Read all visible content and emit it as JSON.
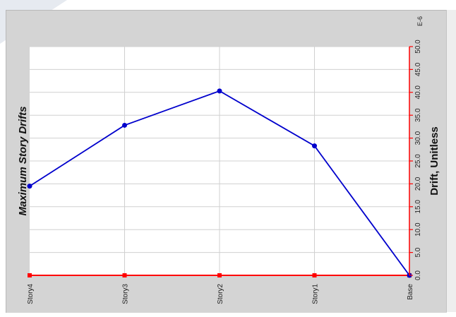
{
  "chart_data": {
    "type": "line",
    "title": "Maximum Story Drifts",
    "xlabel": "",
    "ylabel": "Drift, Unitless",
    "y_scale_label": "E-6",
    "orientation": "rotated-90-clockwise",
    "grid": true,
    "categories": [
      "Story4",
      "Story3",
      "Story2",
      "Story1",
      "Base"
    ],
    "series": [
      {
        "values": [
          19.5,
          32.8,
          40.3,
          28.3,
          0.0
        ],
        "color": "#0000cc",
        "marker": "circle"
      }
    ],
    "baseline": {
      "values": [
        0,
        0,
        0,
        0,
        0
      ],
      "color": "#ff0000",
      "marker": "square"
    },
    "ylim": [
      0,
      50
    ],
    "yticks": [
      "0.0",
      "5.0",
      "10.0",
      "15.0",
      "20.0",
      "25.0",
      "30.0",
      "35.0",
      "40.0",
      "45.0",
      "50.0"
    ]
  },
  "colors": {
    "window_bg": "#d4d4d4",
    "plot_bg": "#ffffff",
    "grid": "#d0d0d0",
    "axis": "#ff0000",
    "series": "#0000cc"
  }
}
